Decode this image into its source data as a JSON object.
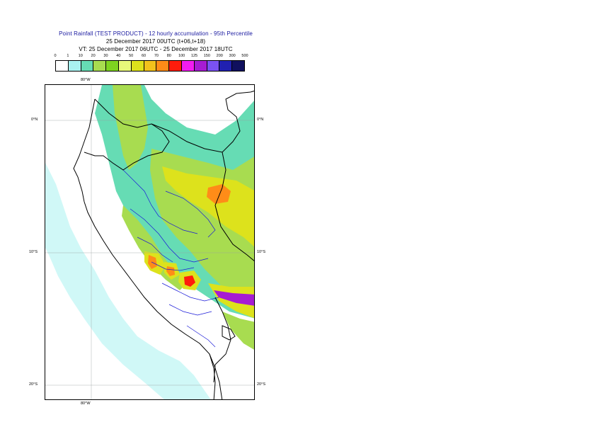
{
  "title": {
    "line1": "Point Rainfall (TEST PRODUCT) - 12 hourly accumulation - 95th Percentile",
    "line2": "25 December 2017 00UTC (t+06,t+18)",
    "line3": "VT: 25 December 2017 06UTC - 25 December 2017 18UTC"
  },
  "legend": {
    "ticks": [
      "0",
      "1",
      "10",
      "20",
      "30",
      "40",
      "50",
      "60",
      "70",
      "80",
      "100",
      "125",
      "150",
      "200",
      "300",
      "500"
    ],
    "colors": [
      "#ffffff",
      "#aaf2f0",
      "#66dcb4",
      "#a8dc50",
      "#7ed320",
      "#e8f87a",
      "#dde21c",
      "#f2c21c",
      "#ff8c18",
      "#ff1c0c",
      "#f21cf0",
      "#a61cd2",
      "#7a52f2",
      "#2020b0",
      "#10105e"
    ]
  },
  "map": {
    "labels": {
      "lon_top": "80°W",
      "lon_bottom": "80°W",
      "lat_0_left": "0°N",
      "lat_0_right": "0°N",
      "lat_10_left": "10°S",
      "lat_10_right": "10°S",
      "lat_20_left": "20°S",
      "lat_20_right": "20°S"
    },
    "colors": {
      "ocean_light": "#aaf2f0",
      "land_light": "#66dcb4",
      "green": "#a8dc50",
      "yellow": "#dde21c",
      "orange": "#ff8c18",
      "purple": "#a61cd2",
      "border": "#000000",
      "regions": "#1a1ad8"
    }
  }
}
